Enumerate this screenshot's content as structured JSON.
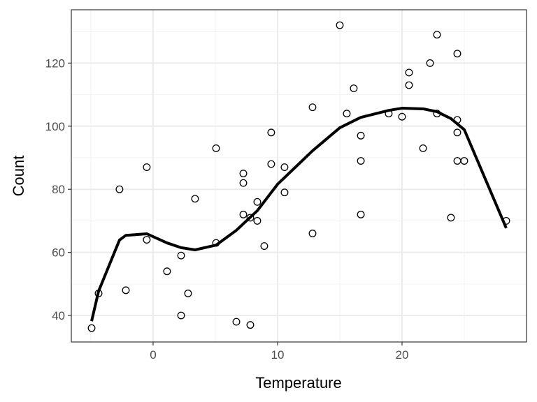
{
  "chart_data": {
    "type": "scatter",
    "title": "",
    "xlabel": "Temperature",
    "ylabel": "Count",
    "xlim": [
      -6.57,
      30.0
    ],
    "ylim": [
      31.6,
      136.9
    ],
    "grid": true,
    "x_ticks": [
      0,
      10,
      20
    ],
    "y_ticks": [
      40,
      60,
      80,
      100,
      120
    ],
    "x_tick_labels": [
      "0",
      "10",
      "20"
    ],
    "y_tick_labels": [
      "40",
      "60",
      "80",
      "100",
      "120"
    ],
    "points": [
      [
        -4.94,
        36
      ],
      [
        -4.38,
        47
      ],
      [
        -2.7,
        80
      ],
      [
        -2.19,
        48
      ],
      [
        -0.51,
        87
      ],
      [
        -0.51,
        64
      ],
      [
        1.12,
        54
      ],
      [
        2.25,
        59
      ],
      [
        2.25,
        40
      ],
      [
        2.81,
        47
      ],
      [
        3.37,
        77
      ],
      [
        5.06,
        93
      ],
      [
        5.06,
        63
      ],
      [
        6.69,
        38
      ],
      [
        7.25,
        85
      ],
      [
        7.25,
        82
      ],
      [
        7.25,
        72
      ],
      [
        7.81,
        71
      ],
      [
        7.81,
        37
      ],
      [
        8.37,
        76
      ],
      [
        8.37,
        70
      ],
      [
        8.93,
        62
      ],
      [
        9.49,
        98
      ],
      [
        9.49,
        88
      ],
      [
        10.56,
        87
      ],
      [
        10.56,
        79
      ],
      [
        12.81,
        106
      ],
      [
        12.81,
        66
      ],
      [
        15.0,
        132
      ],
      [
        15.56,
        104
      ],
      [
        16.12,
        112
      ],
      [
        16.69,
        97
      ],
      [
        16.69,
        89
      ],
      [
        16.69,
        72
      ],
      [
        18.93,
        104
      ],
      [
        20.0,
        103
      ],
      [
        20.56,
        117
      ],
      [
        20.56,
        113
      ],
      [
        21.69,
        93
      ],
      [
        22.25,
        120
      ],
      [
        22.81,
        129
      ],
      [
        22.81,
        104
      ],
      [
        23.93,
        71
      ],
      [
        24.44,
        123
      ],
      [
        24.44,
        102
      ],
      [
        24.44,
        98
      ],
      [
        24.44,
        89
      ],
      [
        25.0,
        89
      ],
      [
        28.37,
        70
      ]
    ],
    "smooth_line": [
      [
        -4.94,
        38.2
      ],
      [
        -4.38,
        47.7
      ],
      [
        -2.7,
        63.9
      ],
      [
        -2.19,
        65.4
      ],
      [
        -0.51,
        65.9
      ],
      [
        1.12,
        63.0
      ],
      [
        2.25,
        61.5
      ],
      [
        3.37,
        60.8
      ],
      [
        5.06,
        62.3
      ],
      [
        6.69,
        67.0
      ],
      [
        8.37,
        73.2
      ],
      [
        10.0,
        81.6
      ],
      [
        12.81,
        92.2
      ],
      [
        15.0,
        99.5
      ],
      [
        16.69,
        102.8
      ],
      [
        18.93,
        105.0
      ],
      [
        20.0,
        105.7
      ],
      [
        21.69,
        105.5
      ],
      [
        22.81,
        104.6
      ],
      [
        23.93,
        102.4
      ],
      [
        25.0,
        98.9
      ],
      [
        28.37,
        67.7
      ]
    ]
  }
}
